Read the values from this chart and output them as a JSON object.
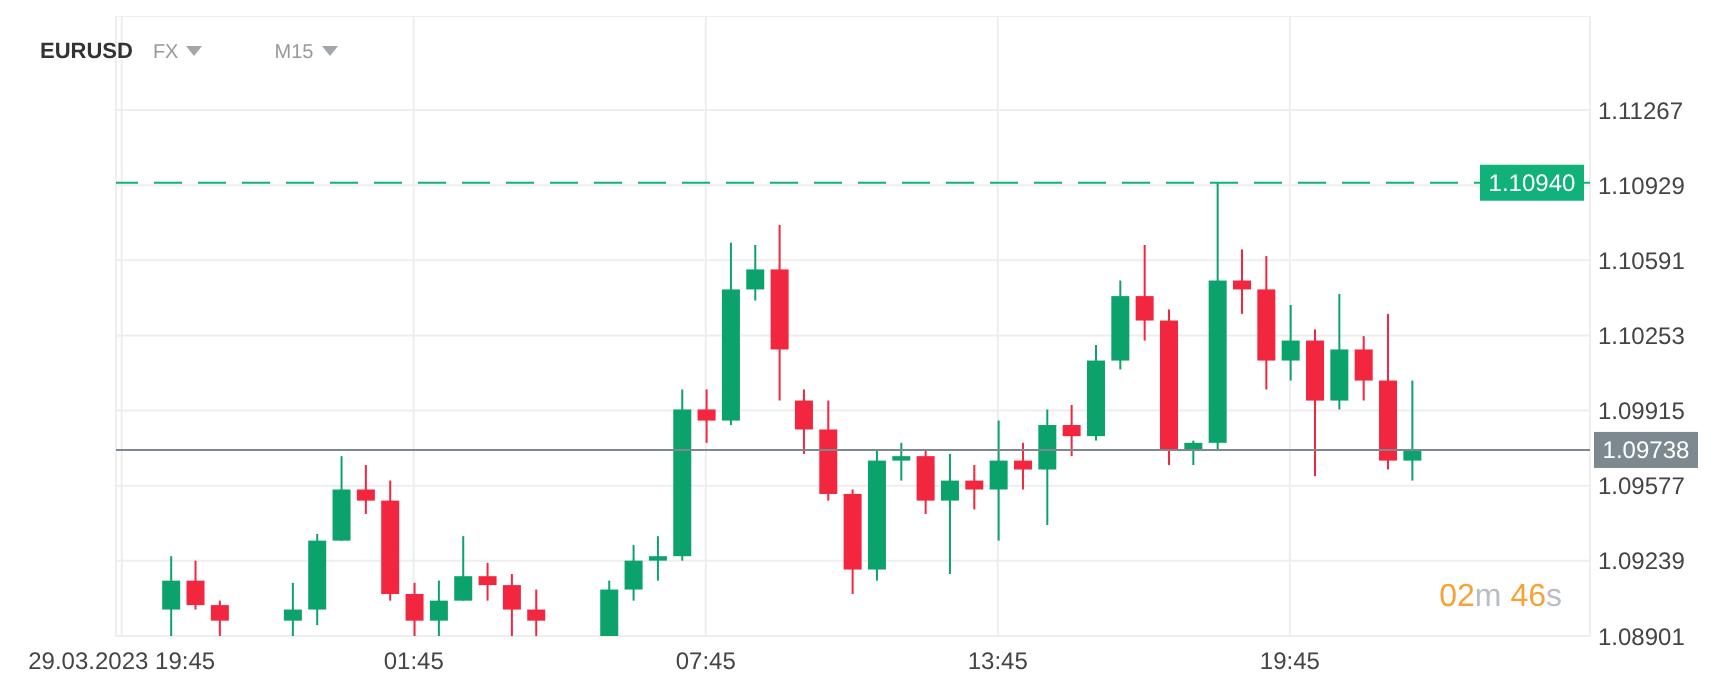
{
  "chart_data": {
    "type": "candlestick",
    "title": "EURUSD",
    "annotations": [
      "FX",
      "M15",
      "02m 46s"
    ],
    "x": [
      "2023-03-29T20:45",
      "2023-03-29T21:15",
      "2023-03-29T21:45",
      "2023-03-29T23:15",
      "2023-03-29T23:45",
      "2023-03-30T00:15",
      "2023-03-30T00:45",
      "2023-03-30T01:15",
      "2023-03-30T01:45",
      "2023-03-30T02:15",
      "2023-03-30T02:45",
      "2023-03-30T03:15",
      "2023-03-30T03:45",
      "2023-03-30T04:15",
      "2023-03-30T05:45",
      "2023-03-30T06:15",
      "2023-03-30T06:45",
      "2023-03-30T07:15",
      "2023-03-30T07:45",
      "2023-03-30T08:15",
      "2023-03-30T08:45",
      "2023-03-30T09:15",
      "2023-03-30T09:45",
      "2023-03-30T10:15",
      "2023-03-30T10:45",
      "2023-03-30T11:15",
      "2023-03-30T11:45",
      "2023-03-30T12:15",
      "2023-03-30T12:45",
      "2023-03-30T13:15",
      "2023-03-30T13:45",
      "2023-03-30T14:15",
      "2023-03-30T14:45",
      "2023-03-30T15:15",
      "2023-03-30T15:45",
      "2023-03-30T16:15",
      "2023-03-30T16:45",
      "2023-03-30T17:15",
      "2023-03-30T17:45",
      "2023-03-30T18:15",
      "2023-03-30T18:45",
      "2023-03-30T19:15",
      "2023-03-30T19:45",
      "2023-03-30T20:15",
      "2023-03-30T20:45",
      "2023-03-30T21:15",
      "2023-03-30T21:45",
      "2023-03-30T22:15"
    ],
    "ohlc": [
      [
        1.0902,
        1.0926,
        1.08901,
        1.0915
      ],
      [
        1.0915,
        1.0924,
        1.0902,
        1.0904
      ],
      [
        1.0904,
        1.0906,
        1.08901,
        1.0897
      ],
      [
        1.0897,
        1.0914,
        1.08901,
        1.0902
      ],
      [
        1.0902,
        1.0936,
        1.0895,
        1.0933
      ],
      [
        1.0933,
        1.0971,
        1.0933,
        1.0956
      ],
      [
        1.0956,
        1.0967,
        1.0945,
        1.0951
      ],
      [
        1.0951,
        1.096,
        1.0906,
        1.0909
      ],
      [
        1.0909,
        1.0914,
        1.08901,
        1.0897
      ],
      [
        1.0897,
        1.0915,
        1.08901,
        1.0906
      ],
      [
        1.0906,
        1.0935,
        1.0906,
        1.0917
      ],
      [
        1.0917,
        1.0923,
        1.0906,
        1.0913
      ],
      [
        1.0913,
        1.0918,
        1.08901,
        1.0902
      ],
      [
        1.0902,
        1.0911,
        1.08901,
        1.0897
      ],
      [
        1.08901,
        1.0915,
        1.08901,
        1.0911
      ],
      [
        1.0911,
        1.0931,
        1.0906,
        1.0924
      ],
      [
        1.0924,
        1.0935,
        1.0915,
        1.0926
      ],
      [
        1.0926,
        1.1001,
        1.0924,
        1.0992
      ],
      [
        1.0992,
        1.1001,
        1.0977,
        1.0987
      ],
      [
        1.0987,
        1.1067,
        1.0985,
        1.1046
      ],
      [
        1.1046,
        1.1066,
        1.1041,
        1.1055
      ],
      [
        1.1055,
        1.1075,
        1.0996,
        1.1019
      ],
      [
        1.0996,
        1.1001,
        1.0972,
        1.0983
      ],
      [
        1.0983,
        1.0996,
        1.0951,
        1.0954
      ],
      [
        1.0954,
        1.0956,
        1.0909,
        1.092
      ],
      [
        1.092,
        1.0974,
        1.0915,
        1.0969
      ],
      [
        1.0969,
        1.0977,
        1.096,
        1.0971
      ],
      [
        1.0971,
        1.0974,
        1.0945,
        1.0951
      ],
      [
        1.0951,
        1.0972,
        1.0918,
        1.096
      ],
      [
        1.096,
        1.0967,
        1.0947,
        1.0956
      ],
      [
        1.0956,
        1.0987,
        1.0933,
        1.0969
      ],
      [
        1.0969,
        1.0977,
        1.0956,
        1.0965
      ],
      [
        1.0965,
        1.0992,
        1.094,
        1.0985
      ],
      [
        1.0985,
        1.0994,
        1.0971,
        1.098
      ],
      [
        1.098,
        1.1021,
        1.0978,
        1.1014
      ],
      [
        1.1014,
        1.105,
        1.101,
        1.1043
      ],
      [
        1.1043,
        1.1066,
        1.1023,
        1.1032
      ],
      [
        1.1032,
        1.1037,
        1.0967,
        1.0974
      ],
      [
        1.0974,
        1.0978,
        1.0967,
        1.0977
      ],
      [
        1.0977,
        1.1094,
        1.0974,
        1.105
      ],
      [
        1.105,
        1.1064,
        1.1035,
        1.1046
      ],
      [
        1.1046,
        1.1061,
        1.1001,
        1.1014
      ],
      [
        1.1014,
        1.1039,
        1.1005,
        1.1023
      ],
      [
        1.1023,
        1.1028,
        1.0962,
        1.0996
      ],
      [
        1.0996,
        1.1044,
        1.0992,
        1.1019
      ],
      [
        1.1019,
        1.1025,
        1.0996,
        1.1005
      ],
      [
        1.1005,
        1.1035,
        1.0965,
        1.0969
      ],
      [
        1.0969,
        1.1005,
        1.096,
        1.09738
      ]
    ],
    "colors": [
      "#0ba36b",
      "#f3263f",
      "#f3263f",
      "#0ba36b",
      "#0ba36b",
      "#0ba36b",
      "#f3263f",
      "#f3263f",
      "#f3263f",
      "#0ba36b",
      "#0ba36b",
      "#f3263f",
      "#f3263f",
      "#f3263f",
      "#0ba36b",
      "#0ba36b",
      "#0ba36b",
      "#0ba36b",
      "#f3263f",
      "#0ba36b",
      "#0ba36b",
      "#f3263f",
      "#f3263f",
      "#f3263f",
      "#f3263f",
      "#0ba36b",
      "#0ba36b",
      "#f3263f",
      "#0ba36b",
      "#f3263f",
      "#0ba36b",
      "#f3263f",
      "#0ba36b",
      "#f3263f",
      "#0ba36b",
      "#0ba36b",
      "#f3263f",
      "#f3263f",
      "#0ba36b",
      "#0ba36b",
      "#f3263f",
      "#f3263f",
      "#0ba36b",
      "#f3263f",
      "#0ba36b",
      "#f3263f",
      "#f3263f",
      "#0ba36b"
    ],
    "xlim": [
      "2023-03-29T19:38",
      "2023-03-31T01:55"
    ],
    "xticks": [
      {
        "value": "2023-03-29T19:45",
        "label": "29.03.2023 19:45"
      },
      {
        "value": "2023-03-30T01:45",
        "label": "01:45"
      },
      {
        "value": "2023-03-30T07:45",
        "label": "07:45"
      },
      {
        "value": "2023-03-30T13:45",
        "label": "13:45"
      },
      {
        "value": "2023-03-30T19:45",
        "label": "19:45"
      }
    ],
    "ylim": [
      1.08901,
      1.1169
    ],
    "yticks": [
      1.08901,
      1.09239,
      1.09577,
      1.09915,
      1.10253,
      1.10591,
      1.10929,
      1.11267
    ],
    "grid": true,
    "ref_lines": [
      {
        "axis": "y",
        "value": 1.1094,
        "label": "1.10940",
        "color": "#10b27a",
        "line_style": "dashed"
      },
      {
        "axis": "y",
        "value": 1.09738,
        "label": "1.09738",
        "color": "#7d898f",
        "line_style": "solid"
      }
    ]
  }
}
